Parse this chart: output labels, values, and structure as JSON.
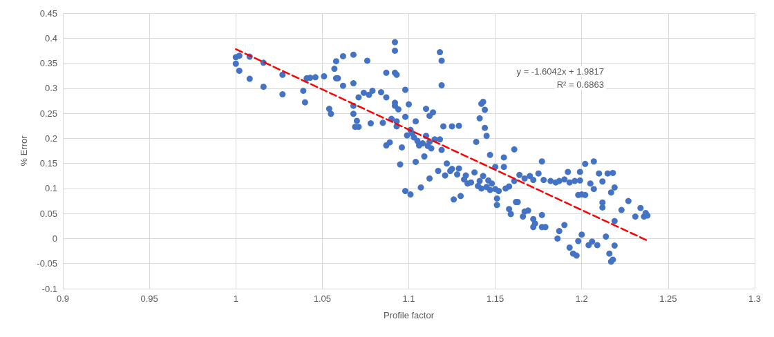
{
  "chart_data": {
    "type": "scatter",
    "xlabel": "Profile factor",
    "ylabel": "% Error",
    "annotations": [
      "y = -1.6042x + 1.9817",
      "R² = 0.6863"
    ],
    "xlim": [
      0.9,
      1.3
    ],
    "xticks": [
      0.9,
      0.95,
      1,
      1.05,
      1.1,
      1.15,
      1.2,
      1.25,
      1.3
    ],
    "ylim": [
      -0.1,
      0.45
    ],
    "yticks": [
      -0.1,
      -0.05,
      0,
      0.05,
      0.1,
      0.15,
      0.2,
      0.25,
      0.3,
      0.35,
      0.4,
      0.45
    ],
    "grid": true,
    "marker": "circle",
    "series": [
      {
        "color": "#4472c4",
        "x": [
          1.0,
          1.0,
          1.002,
          1.002,
          1.008,
          1.008,
          1.016,
          1.016,
          1.027,
          1.027,
          1.039,
          1.04,
          1.041,
          1.043,
          1.046,
          1.051,
          1.054,
          1.055,
          1.057,
          1.058,
          1.058,
          1.059,
          1.062,
          1.062,
          1.068,
          1.068,
          1.068,
          1.068,
          1.07,
          1.069,
          1.071,
          1.071,
          1.076,
          1.074,
          1.077,
          1.078,
          1.079,
          1.084,
          1.085,
          1.087,
          1.087,
          1.087,
          1.089,
          1.09,
          1.092,
          1.092,
          1.092,
          1.093,
          1.092,
          1.092,
          1.093,
          1.093,
          1.095,
          1.096,
          1.094,
          1.098,
          1.098,
          1.099,
          1.098,
          1.1,
          1.101,
          1.101,
          1.102,
          1.103,
          1.104,
          1.104,
          1.106,
          1.107,
          1.109,
          1.11,
          1.112,
          1.11,
          1.112,
          1.112,
          1.114,
          1.115,
          1.117,
          1.118,
          1.119,
          1.119,
          1.118,
          1.119,
          1.12,
          1.122,
          1.121,
          1.125,
          1.125,
          1.126,
          1.129,
          1.129,
          1.13,
          1.133,
          1.134,
          1.139,
          1.141,
          1.142,
          1.143,
          1.144,
          1.144,
          1.145,
          1.147,
          1.146,
          1.15,
          1.15,
          1.151,
          1.151,
          1.155,
          1.155,
          1.158,
          1.159,
          1.161,
          1.162,
          1.163,
          1.166,
          1.167,
          1.169,
          1.172,
          1.172,
          1.173,
          1.177,
          1.177,
          1.177,
          1.179,
          1.186,
          1.187,
          1.19,
          1.192,
          1.193,
          1.195,
          1.197,
          1.198,
          1.2,
          1.199,
          1.198,
          1.2,
          1.202,
          1.202,
          1.204,
          1.206,
          1.207,
          1.205,
          1.207,
          1.21,
          1.209,
          1.212,
          1.212,
          1.212,
          1.214,
          1.215,
          1.217,
          1.216,
          1.217,
          1.218,
          1.218,
          1.219,
          1.219,
          1.219,
          1.223,
          1.227,
          1.231,
          1.234,
          1.236,
          1.237,
          1.238,
          1.14,
          1.142,
          1.145,
          1.147,
          1.148,
          1.152,
          1.156,
          1.158,
          1.161,
          1.164,
          1.167,
          1.17,
          1.172,
          1.175,
          1.178,
          1.182,
          1.185,
          1.187,
          1.19,
          1.193,
          1.196,
          1.199,
          1.105,
          1.108,
          1.111,
          1.113,
          1.124,
          1.128,
          1.132,
          1.136,
          1.138,
          1.141,
          1.143
        ],
        "values": [
          0.349,
          0.362,
          0.365,
          0.335,
          0.363,
          0.319,
          0.351,
          0.303,
          0.327,
          0.288,
          0.295,
          0.272,
          0.32,
          0.321,
          0.322,
          0.324,
          0.259,
          0.249,
          0.339,
          0.354,
          0.32,
          0.32,
          0.305,
          0.364,
          0.367,
          0.31,
          0.265,
          0.249,
          0.235,
          0.223,
          0.223,
          0.282,
          0.355,
          0.291,
          0.287,
          0.23,
          0.295,
          0.292,
          0.231,
          0.331,
          0.282,
          0.186,
          0.192,
          0.239,
          0.392,
          0.375,
          0.331,
          0.327,
          0.271,
          0.265,
          0.234,
          0.224,
          0.148,
          0.182,
          0.258,
          0.297,
          0.243,
          0.206,
          0.095,
          0.268,
          0.088,
          0.217,
          0.21,
          0.202,
          0.234,
          0.153,
          0.186,
          0.102,
          0.164,
          0.259,
          0.245,
          0.205,
          0.193,
          0.12,
          0.252,
          0.198,
          0.135,
          0.372,
          0.355,
          0.306,
          0.198,
          0.177,
          0.224,
          0.15,
          0.126,
          0.224,
          0.139,
          0.078,
          0.225,
          0.14,
          0.085,
          0.126,
          0.11,
          0.193,
          0.24,
          0.269,
          0.273,
          0.257,
          0.221,
          0.205,
          0.167,
          0.116,
          0.143,
          0.099,
          0.067,
          0.08,
          0.162,
          0.143,
          0.059,
          0.049,
          0.178,
          0.073,
          0.073,
          0.044,
          0.054,
          0.056,
          0.039,
          0.023,
          0.03,
          0.047,
          0.154,
          0.023,
          0.023,
          0.0,
          0.015,
          0.027,
          0.133,
          -0.018,
          -0.03,
          -0.034,
          -0.005,
          0.008,
          0.133,
          0.087,
          0.088,
          0.087,
          0.149,
          -0.013,
          -0.006,
          0.154,
          0.11,
          0.099,
          0.13,
          -0.013,
          0.114,
          0.072,
          0.062,
          0.004,
          0.13,
          0.092,
          -0.03,
          -0.046,
          -0.042,
          0.131,
          0.102,
          0.035,
          -0.014,
          0.057,
          0.075,
          0.044,
          0.061,
          0.044,
          0.051,
          0.046,
          0.105,
          0.1,
          0.103,
          0.097,
          0.11,
          0.095,
          0.1,
          0.104,
          0.115,
          0.127,
          0.12,
          0.125,
          0.117,
          0.13,
          0.117,
          0.115,
          0.112,
          0.115,
          0.118,
          0.112,
          0.115,
          0.116,
          0.195,
          0.19,
          0.185,
          0.18,
          0.135,
          0.128,
          0.118,
          0.112,
          0.132,
          0.115,
          0.125
        ]
      },
      {
        "type": "line",
        "color": "#ff0000",
        "line_style": "dashed",
        "marker": "none",
        "x": [
          1.0,
          1.238
        ],
        "values": [
          0.378,
          -0.004
        ]
      }
    ]
  }
}
